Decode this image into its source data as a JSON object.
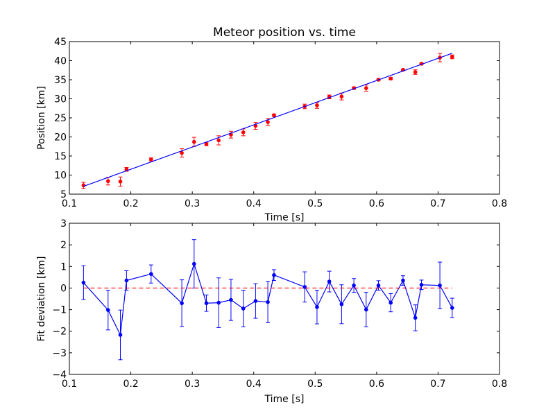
{
  "chart_data": [
    {
      "type": "scatter",
      "title": "Meteor position vs. time",
      "xlabel": "Time [s]",
      "ylabel": "Position [km]",
      "xlim": [
        0.1,
        0.8
      ],
      "ylim": [
        5,
        45
      ],
      "xticks": [
        "0.1",
        "0.2",
        "0.3",
        "0.4",
        "0.5",
        "0.6",
        "0.7",
        "0.8"
      ],
      "yticks": [
        "5",
        "10",
        "15",
        "20",
        "25",
        "30",
        "35",
        "40",
        "45"
      ],
      "grid": false,
      "series": [
        {
          "style": "points-with-errorbars",
          "color": "#ff0000",
          "x": [
            0.123,
            0.163,
            0.183,
            0.193,
            0.233,
            0.283,
            0.303,
            0.323,
            0.343,
            0.363,
            0.383,
            0.403,
            0.423,
            0.433,
            0.483,
            0.503,
            0.523,
            0.543,
            0.563,
            0.583,
            0.603,
            0.623,
            0.643,
            0.663,
            0.673,
            0.703,
            0.723
          ],
          "y": [
            7.3,
            8.4,
            8.3,
            11.5,
            14.1,
            15.8,
            18.7,
            18.1,
            19.1,
            20.6,
            21.2,
            22.9,
            23.9,
            25.7,
            28.0,
            28.3,
            30.5,
            30.6,
            32.8,
            32.8,
            35.0,
            35.3,
            37.6,
            37.0,
            39.2,
            40.8,
            41.0
          ],
          "yerr": [
            0.8,
            1.0,
            1.2,
            0.5,
            0.4,
            1.1,
            1.2,
            0.4,
            1.2,
            0.9,
            0.9,
            0.9,
            0.9,
            0.3,
            0.6,
            0.8,
            0.5,
            0.9,
            0.3,
            0.8,
            0.2,
            0.3,
            0.2,
            0.6,
            0.2,
            1.1,
            0.5
          ]
        },
        {
          "style": "fit-line",
          "color": "#0000ff",
          "x": [
            0.123,
            0.723
          ],
          "y": [
            7.05,
            41.95
          ]
        }
      ]
    },
    {
      "type": "line",
      "xlabel": "Time [s]",
      "ylabel": "Fit deviation [km]",
      "xlim": [
        0.1,
        0.8
      ],
      "ylim": [
        -4,
        3
      ],
      "xticks": [
        "0.1",
        "0.2",
        "0.3",
        "0.4",
        "0.5",
        "0.6",
        "0.7",
        "0.8"
      ],
      "yticks": [
        "−4",
        "−3",
        "−2",
        "−1",
        "0",
        "1",
        "2",
        "3"
      ],
      "grid": false,
      "series": [
        {
          "style": "line-with-errorbars",
          "color": "#0000ff",
          "x": [
            0.123,
            0.163,
            0.183,
            0.193,
            0.233,
            0.283,
            0.303,
            0.323,
            0.343,
            0.363,
            0.383,
            0.403,
            0.423,
            0.433,
            0.483,
            0.503,
            0.523,
            0.543,
            0.563,
            0.583,
            0.603,
            0.623,
            0.643,
            0.663,
            0.673,
            0.703,
            0.723
          ],
          "y": [
            0.25,
            -1.02,
            -2.17,
            0.35,
            0.65,
            -0.7,
            1.12,
            -0.7,
            -0.68,
            -0.55,
            -0.95,
            -0.6,
            -0.65,
            0.6,
            0.05,
            -0.88,
            0.3,
            -0.75,
            0.12,
            -1.0,
            0.12,
            -0.68,
            0.35,
            -1.38,
            0.15,
            0.12,
            -0.92
          ],
          "yerr": [
            0.78,
            0.92,
            1.15,
            0.45,
            0.42,
            1.08,
            1.12,
            0.38,
            1.15,
            0.95,
            0.85,
            0.8,
            0.95,
            0.25,
            0.7,
            0.78,
            0.48,
            0.9,
            0.32,
            0.8,
            0.22,
            0.42,
            0.22,
            0.6,
            0.22,
            1.08,
            0.45
          ]
        },
        {
          "style": "dashed-zero-line",
          "color": "#ff0000",
          "x": [
            0.123,
            0.723
          ],
          "y": [
            0,
            0
          ]
        }
      ]
    }
  ]
}
